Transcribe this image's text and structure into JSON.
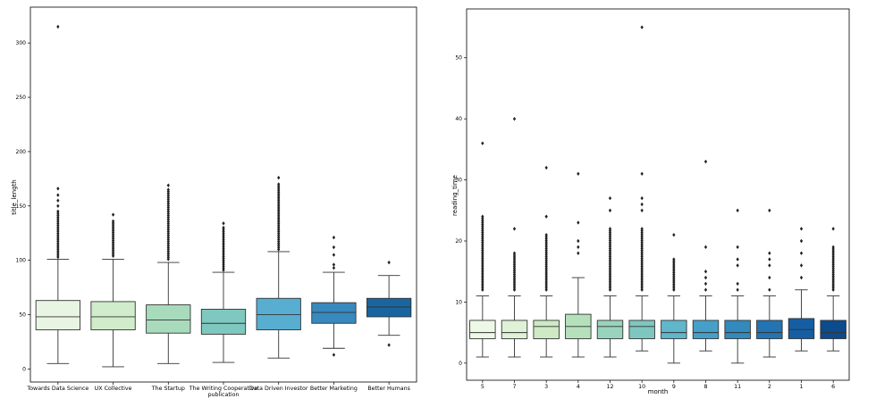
{
  "chart_data": [
    {
      "type": "box",
      "title": "",
      "xlabel": "",
      "ylabel": "title_length",
      "ylim": [
        -12,
        333
      ],
      "yticks": [
        0,
        50,
        100,
        150,
        200,
        250,
        300
      ],
      "palette": [
        "#e8f5e2",
        "#d0ecca",
        "#a8dbbc",
        "#7ec8bf",
        "#57aed1",
        "#3789be",
        "#19659f"
      ],
      "categories": [
        {
          "label": "Towards Data Science",
          "label2": "",
          "q1": 36,
          "median": 48,
          "q3": 63,
          "whisker_low": 5,
          "whisker_high": 101,
          "outliers_min": 103,
          "outliers_max": 145,
          "outliers": [
            150,
            155,
            160,
            166,
            315
          ]
        },
        {
          "label": "UX Collective",
          "label2": "",
          "q1": 36,
          "median": 48,
          "q3": 62,
          "whisker_low": 2,
          "whisker_high": 101,
          "outliers_min": 104,
          "outliers_max": 136,
          "outliers": [
            142
          ]
        },
        {
          "label": "The Startup",
          "label2": "",
          "q1": 33,
          "median": 45,
          "q3": 59,
          "whisker_low": 5,
          "whisker_high": 98,
          "outliers_min": 101,
          "outliers_max": 165,
          "outliers": [
            169
          ]
        },
        {
          "label": "The Writing Cooperative",
          "label2": "publication",
          "q1": 32,
          "median": 42,
          "q3": 55,
          "whisker_low": 6,
          "whisker_high": 89,
          "outliers_min": 91,
          "outliers_max": 130,
          "outliers": [
            134
          ]
        },
        {
          "label": "Data Driven Investor",
          "label2": "",
          "q1": 36,
          "median": 50,
          "q3": 65,
          "whisker_low": 10,
          "whisker_high": 108,
          "outliers_min": 110,
          "outliers_max": 170,
          "outliers": [
            176
          ]
        },
        {
          "label": "Better Marketing",
          "label2": "",
          "q1": 42,
          "median": 52,
          "q3": 61,
          "whisker_low": 19,
          "whisker_high": 89,
          "outliers_min": 0,
          "outliers_max": 0,
          "outliers": [
            93,
            96,
            105,
            112,
            121,
            13
          ]
        },
        {
          "label": "Better Humans",
          "label2": "",
          "q1": 48,
          "median": 57,
          "q3": 65,
          "whisker_low": 31,
          "whisker_high": 86,
          "outliers_min": 0,
          "outliers_max": 0,
          "outliers": [
            98,
            22
          ]
        }
      ]
    },
    {
      "type": "box",
      "title": "",
      "xlabel": "month",
      "ylabel": "reading_time",
      "ylim": [
        -2.8,
        58
      ],
      "yticks": [
        0,
        10,
        20,
        30,
        40,
        50
      ],
      "palette": [
        "#eef8e6",
        "#dff1d6",
        "#cdeac4",
        "#b5e0bc",
        "#98d4bc",
        "#7ec7c0",
        "#60b6cb",
        "#45a0c9",
        "#328abd",
        "#2374b2",
        "#155ea3",
        "#0c4b8d"
      ],
      "categories": [
        {
          "label": "5",
          "label2": "",
          "q1": 4,
          "median": 5,
          "q3": 7,
          "whisker_low": 1,
          "whisker_high": 11,
          "outliers_min": 12,
          "outliers_max": 24,
          "outliers": [
            36
          ]
        },
        {
          "label": "7",
          "label2": "",
          "q1": 4,
          "median": 5,
          "q3": 7,
          "whisker_low": 1,
          "whisker_high": 11,
          "outliers_min": 12,
          "outliers_max": 18,
          "outliers": [
            22,
            40
          ]
        },
        {
          "label": "3",
          "label2": "",
          "q1": 4,
          "median": 6,
          "q3": 7,
          "whisker_low": 1,
          "whisker_high": 11,
          "outliers_min": 12,
          "outliers_max": 21,
          "outliers": [
            24,
            32
          ]
        },
        {
          "label": "4",
          "label2": "",
          "q1": 4,
          "median": 6,
          "q3": 8,
          "whisker_low": 1,
          "whisker_high": 14,
          "outliers_min": 0,
          "outliers_max": 0,
          "outliers": [
            18,
            19,
            20,
            23,
            31
          ]
        },
        {
          "label": "12",
          "label2": "",
          "q1": 4,
          "median": 6,
          "q3": 7,
          "whisker_low": 1,
          "whisker_high": 11,
          "outliers_min": 12,
          "outliers_max": 22,
          "outliers": [
            25,
            27
          ]
        },
        {
          "label": "10",
          "label2": "",
          "q1": 4,
          "median": 6,
          "q3": 7,
          "whisker_low": 2,
          "whisker_high": 11,
          "outliers_min": 12,
          "outliers_max": 22,
          "outliers": [
            25,
            26,
            27,
            31,
            55
          ]
        },
        {
          "label": "9",
          "label2": "",
          "q1": 4,
          "median": 5,
          "q3": 7,
          "whisker_low": 0,
          "whisker_high": 11,
          "outliers_min": 12,
          "outliers_max": 17,
          "outliers": [
            21
          ]
        },
        {
          "label": "8",
          "label2": "",
          "q1": 4,
          "median": 5,
          "q3": 7,
          "whisker_low": 2,
          "whisker_high": 11,
          "outliers_min": 0,
          "outliers_max": 0,
          "outliers": [
            12,
            13,
            14,
            15,
            19,
            33
          ]
        },
        {
          "label": "11",
          "label2": "",
          "q1": 4,
          "median": 5,
          "q3": 7,
          "whisker_low": 0,
          "whisker_high": 11,
          "outliers_min": 0,
          "outliers_max": 0,
          "outliers": [
            12,
            13,
            16,
            17,
            19,
            25
          ]
        },
        {
          "label": "2",
          "label2": "",
          "q1": 4,
          "median": 5,
          "q3": 7,
          "whisker_low": 1,
          "whisker_high": 11,
          "outliers_min": 0,
          "outliers_max": 0,
          "outliers": [
            12,
            14,
            16,
            17,
            18,
            25
          ]
        },
        {
          "label": "1",
          "label2": "",
          "q1": 4,
          "median": 5.5,
          "q3": 7.3,
          "whisker_low": 2,
          "whisker_high": 12,
          "outliers_min": 0,
          "outliers_max": 0,
          "outliers": [
            14,
            16,
            18,
            20,
            22
          ]
        },
        {
          "label": "6",
          "label2": "",
          "q1": 4,
          "median": 5,
          "q3": 7,
          "whisker_low": 2,
          "whisker_high": 11,
          "outliers_min": 12,
          "outliers_max": 19,
          "outliers": [
            22
          ]
        }
      ]
    }
  ]
}
